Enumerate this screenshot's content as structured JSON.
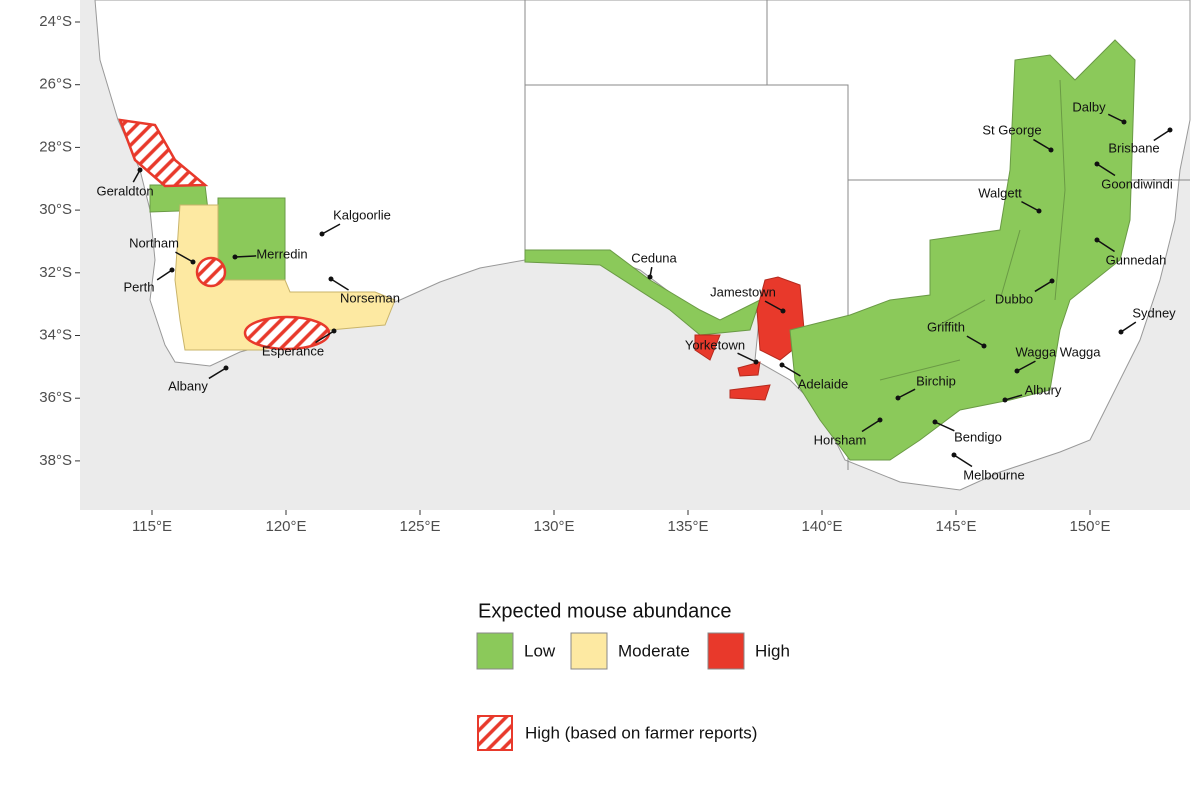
{
  "axes": {
    "y_ticks": [
      "24°S",
      "26°S",
      "28°S",
      "30°S",
      "32°S",
      "34°S",
      "36°S",
      "38°S"
    ],
    "x_ticks": [
      "115°E",
      "120°E",
      "125°E",
      "130°E",
      "135°E",
      "140°E",
      "145°E",
      "150°E"
    ]
  },
  "places": [
    "Geraldton",
    "Northam",
    "Perth",
    "Merredin",
    "Kalgoorlie",
    "Norseman",
    "Esperance",
    "Albany",
    "Ceduna",
    "Jamestown",
    "Yorketown",
    "Adelaide",
    "Birchip",
    "Horsham",
    "Bendigo",
    "Melbourne",
    "Griffith",
    "Wagga Wagga",
    "Albury",
    "Dubbo",
    "Gunnedah",
    "Sydney",
    "Walgett",
    "St George",
    "Dalby",
    "Brisbane",
    "Goondiwindi"
  ],
  "legend": {
    "title": "Expected mouse abundance",
    "items": [
      "Low",
      "Moderate",
      "High"
    ],
    "farmer_reports": "High (based on farmer reports)"
  }
}
